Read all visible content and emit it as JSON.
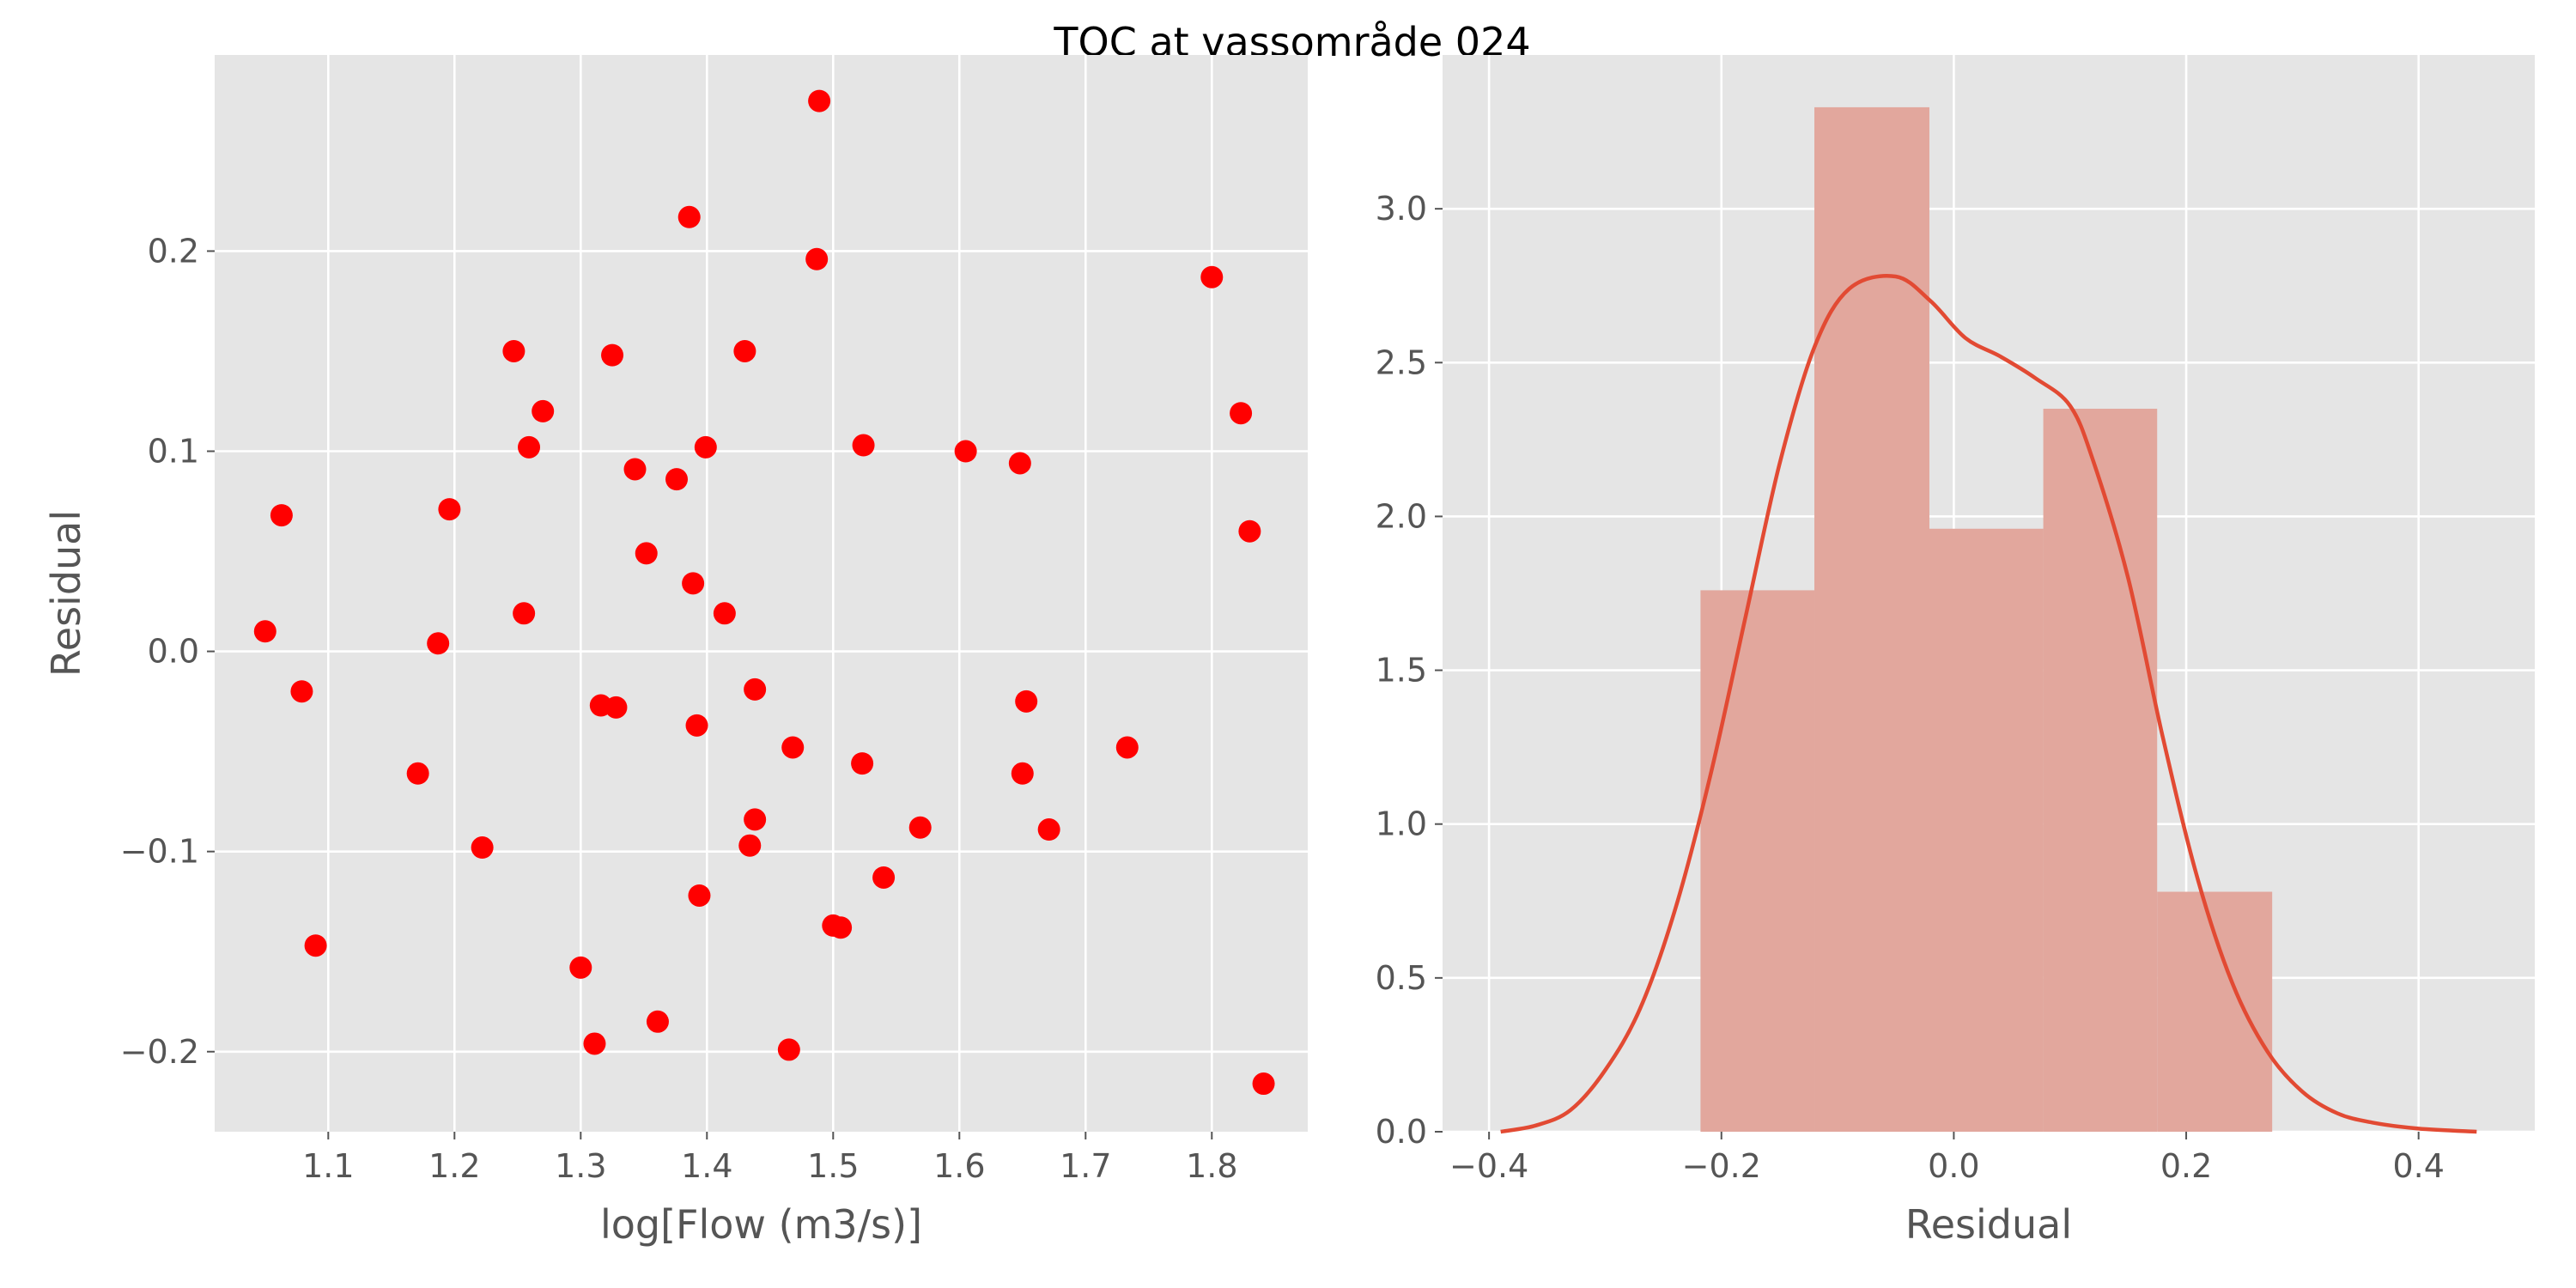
{
  "figure": {
    "title": "TOC at vassområde 024"
  },
  "chart_data": [
    {
      "type": "scatter",
      "xlabel": "log[Flow (m3/s)]",
      "ylabel": "Residual",
      "xlim": [
        1.01,
        1.876
      ],
      "ylim": [
        -0.24,
        0.298
      ],
      "xticks": [
        1.1,
        1.2,
        1.3,
        1.4,
        1.5,
        1.6,
        1.7,
        1.8
      ],
      "xtick_labels": [
        "1.1",
        "1.2",
        "1.3",
        "1.4",
        "1.5",
        "1.6",
        "1.7",
        "1.8"
      ],
      "yticks": [
        -0.2,
        -0.1,
        0.0,
        0.1,
        0.2
      ],
      "ytick_labels": [
        "−0.2",
        "−0.1",
        "0.0",
        "0.1",
        "0.2"
      ],
      "grid": true,
      "marker_color": "#ff0000",
      "points": [
        [
          1.05,
          0.01
        ],
        [
          1.063,
          0.068
        ],
        [
          1.079,
          -0.02
        ],
        [
          1.09,
          -0.147
        ],
        [
          1.171,
          -0.061
        ],
        [
          1.187,
          0.004
        ],
        [
          1.196,
          0.071
        ],
        [
          1.222,
          -0.098
        ],
        [
          1.247,
          0.15
        ],
        [
          1.255,
          0.019
        ],
        [
          1.259,
          0.102
        ],
        [
          1.27,
          0.12
        ],
        [
          1.3,
          -0.158
        ],
        [
          1.311,
          -0.196
        ],
        [
          1.316,
          -0.027
        ],
        [
          1.325,
          0.148
        ],
        [
          1.328,
          -0.028
        ],
        [
          1.343,
          0.091
        ],
        [
          1.352,
          0.049
        ],
        [
          1.361,
          -0.185
        ],
        [
          1.376,
          0.086
        ],
        [
          1.386,
          0.217
        ],
        [
          1.389,
          0.034
        ],
        [
          1.392,
          -0.037
        ],
        [
          1.394,
          -0.122
        ],
        [
          1.399,
          0.102
        ],
        [
          1.414,
          0.019
        ],
        [
          1.43,
          0.15
        ],
        [
          1.434,
          -0.097
        ],
        [
          1.438,
          -0.019
        ],
        [
          1.438,
          -0.084
        ],
        [
          1.465,
          -0.199
        ],
        [
          1.468,
          -0.048
        ],
        [
          1.487,
          0.196
        ],
        [
          1.489,
          0.275
        ],
        [
          1.5,
          -0.137
        ],
        [
          1.506,
          -0.138
        ],
        [
          1.523,
          -0.056
        ],
        [
          1.524,
          0.103
        ],
        [
          1.54,
          -0.113
        ],
        [
          1.569,
          -0.088
        ],
        [
          1.605,
          0.1
        ],
        [
          1.648,
          0.094
        ],
        [
          1.65,
          -0.061
        ],
        [
          1.653,
          -0.025
        ],
        [
          1.671,
          -0.089
        ],
        [
          1.733,
          -0.048
        ],
        [
          1.8,
          0.187
        ],
        [
          1.823,
          0.119
        ],
        [
          1.83,
          0.06
        ],
        [
          1.841,
          -0.216
        ]
      ]
    },
    {
      "type": "histogram_kde",
      "xlabel": "Residual",
      "ylabel": "",
      "xlim": [
        -0.44,
        0.5
      ],
      "ylim": [
        0,
        3.5
      ],
      "xticks": [
        -0.4,
        -0.2,
        0.0,
        0.2,
        0.4
      ],
      "xtick_labels": [
        "−0.4",
        "−0.2",
        "0.0",
        "0.2",
        "0.4"
      ],
      "yticks": [
        0.0,
        0.5,
        1.0,
        1.5,
        2.0,
        2.5,
        3.0
      ],
      "ytick_labels": [
        "0.0",
        "0.5",
        "1.0",
        "1.5",
        "2.0",
        "2.5",
        "3.0"
      ],
      "grid": true,
      "bar_color": "#e2a79d",
      "line_color": "#e24a33",
      "bins": [
        {
          "x0": -0.218,
          "x1": -0.12,
          "density": 1.76
        },
        {
          "x0": -0.12,
          "x1": -0.021,
          "density": 3.33
        },
        {
          "x0": -0.021,
          "x1": 0.077,
          "density": 1.96
        },
        {
          "x0": 0.077,
          "x1": 0.175,
          "density": 2.35
        },
        {
          "x0": 0.175,
          "x1": 0.274,
          "density": 0.78
        }
      ],
      "kde": [
        [
          -0.39,
          0.0
        ],
        [
          -0.36,
          0.02
        ],
        [
          -0.33,
          0.07
        ],
        [
          -0.3,
          0.2
        ],
        [
          -0.27,
          0.4
        ],
        [
          -0.24,
          0.72
        ],
        [
          -0.21,
          1.15
        ],
        [
          -0.18,
          1.66
        ],
        [
          -0.15,
          2.17
        ],
        [
          -0.12,
          2.55
        ],
        [
          -0.09,
          2.74
        ],
        [
          -0.05,
          2.78
        ],
        [
          -0.02,
          2.7
        ],
        [
          0.01,
          2.58
        ],
        [
          0.04,
          2.52
        ],
        [
          0.07,
          2.45
        ],
        [
          0.1,
          2.36
        ],
        [
          0.12,
          2.18
        ],
        [
          0.15,
          1.8
        ],
        [
          0.18,
          1.28
        ],
        [
          0.21,
          0.82
        ],
        [
          0.24,
          0.48
        ],
        [
          0.27,
          0.26
        ],
        [
          0.3,
          0.13
        ],
        [
          0.33,
          0.06
        ],
        [
          0.36,
          0.03
        ],
        [
          0.4,
          0.01
        ],
        [
          0.45,
          0.0
        ]
      ]
    }
  ]
}
